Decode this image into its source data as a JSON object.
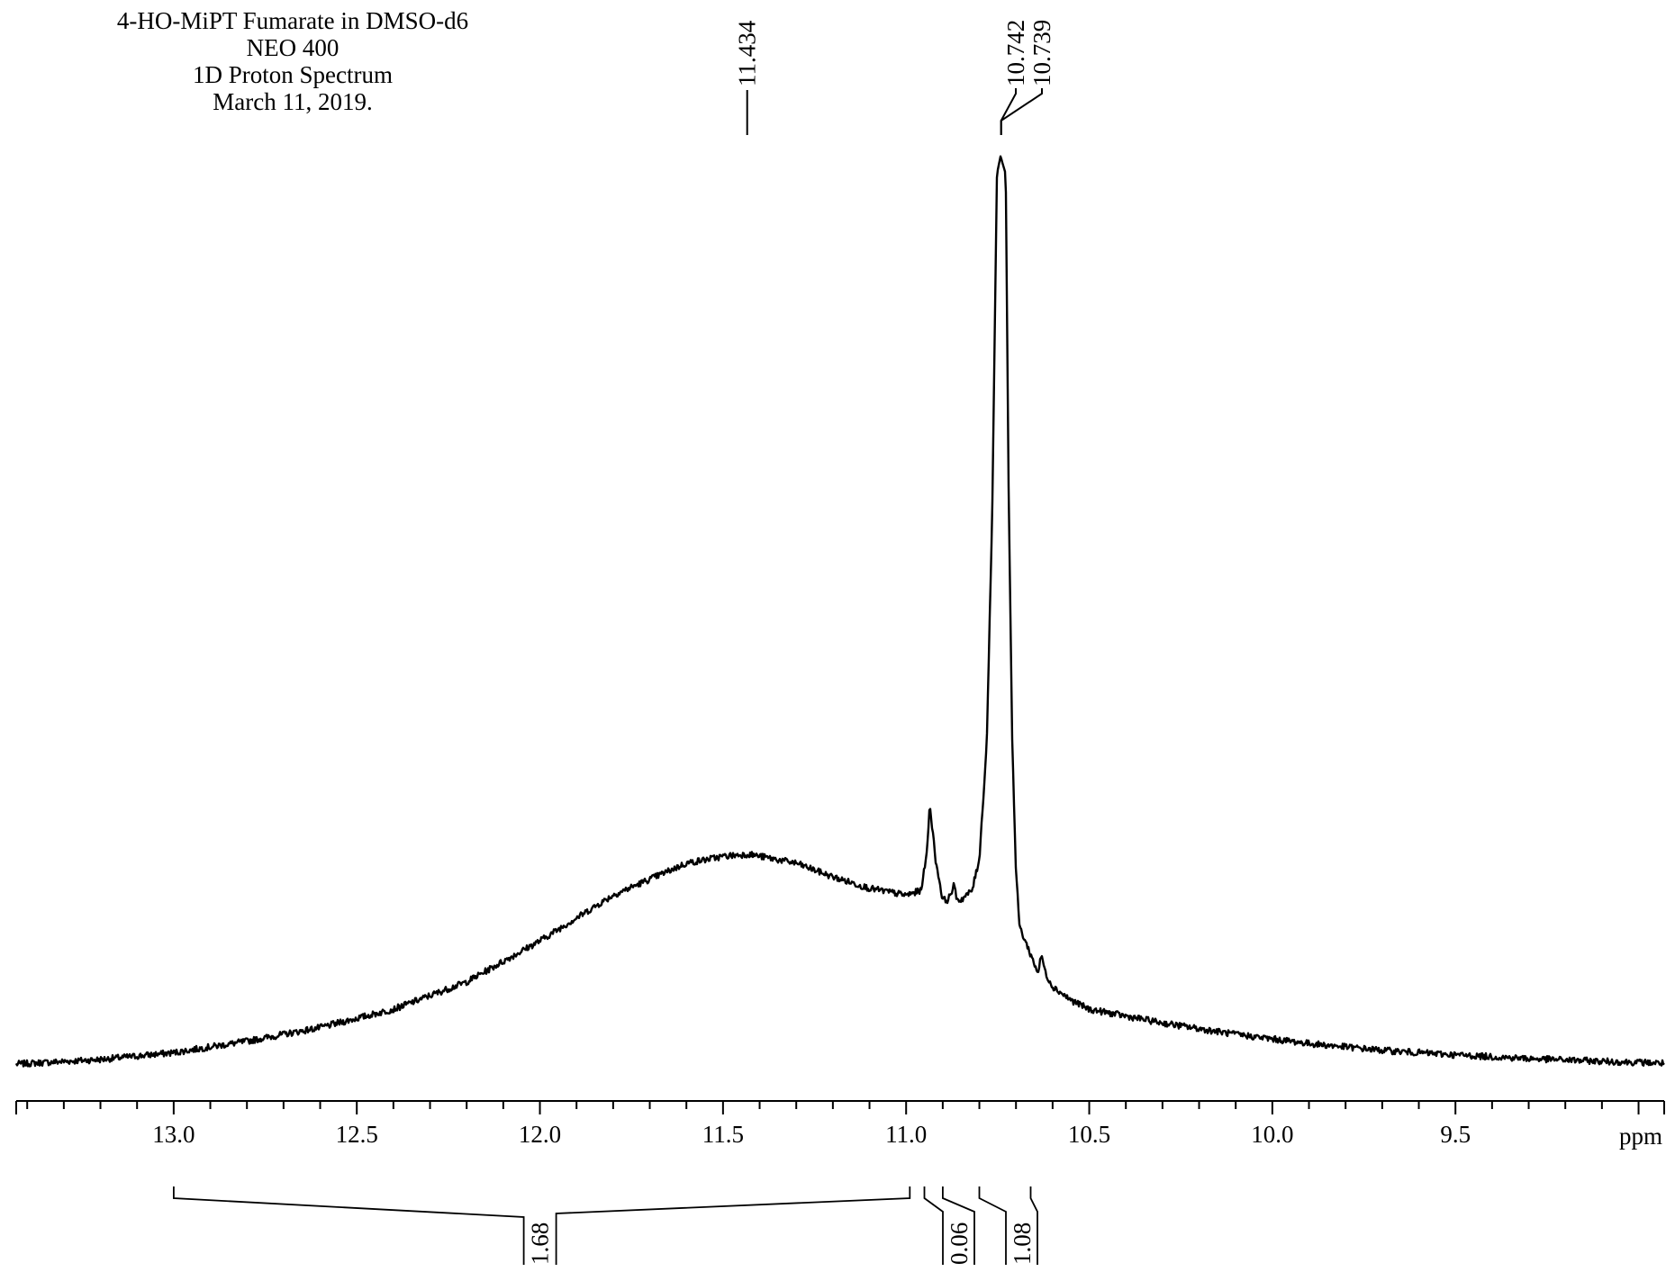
{
  "header": {
    "lines": [
      "4-HO-MiPT Fumarate in DMSO-d6",
      "NEO 400",
      "1D Proton Spectrum",
      "March 11, 2019."
    ]
  },
  "chart_data": {
    "type": "line",
    "title": "4-HO-MiPT Fumarate in DMSO-d6",
    "xlabel": "ppm",
    "ylabel": "",
    "x_axis_reversed": true,
    "xlim": [
      13.43,
      8.93
    ],
    "grid": false,
    "x_ticks": [
      "13.0",
      "12.5",
      "12.0",
      "11.5",
      "11.0",
      "10.5",
      "10.0",
      "9.5"
    ],
    "peak_labels": [
      {
        "ppm": 11.434,
        "label": "11.434"
      },
      {
        "ppm": 10.742,
        "label": "10.742"
      },
      {
        "ppm": 10.739,
        "label": "10.739"
      }
    ],
    "integrals": [
      {
        "from": 13.0,
        "to": 10.99,
        "value": "1.68"
      },
      {
        "from": 10.95,
        "to": 10.9,
        "value": "0.06"
      },
      {
        "from": 10.8,
        "to": 10.66,
        "value": "1.08"
      }
    ],
    "series": [
      {
        "x": [
          13.43,
          13.2,
          13.0,
          12.8,
          12.6,
          12.4,
          12.2,
          12.0,
          11.8,
          11.6,
          11.5,
          11.43,
          11.3,
          11.2,
          11.1,
          11.0,
          10.96,
          10.945,
          10.935,
          10.92,
          10.9,
          10.885,
          10.87,
          10.86,
          10.85,
          10.82,
          10.8,
          10.78,
          10.765,
          10.752,
          10.742,
          10.739,
          10.728,
          10.72,
          10.71,
          10.7,
          10.69,
          10.67,
          10.64,
          10.63,
          10.62,
          10.6,
          10.55,
          10.5,
          10.3,
          10.1,
          9.9,
          9.7,
          9.5,
          9.3,
          9.1,
          8.93
        ],
        "y": [
          0.0,
          0.01,
          0.025,
          0.05,
          0.08,
          0.12,
          0.18,
          0.27,
          0.37,
          0.44,
          0.455,
          0.46,
          0.44,
          0.41,
          0.385,
          0.37,
          0.38,
          0.45,
          0.57,
          0.45,
          0.36,
          0.36,
          0.39,
          0.36,
          0.36,
          0.38,
          0.45,
          0.7,
          1.2,
          1.95,
          1.99,
          1.98,
          1.95,
          1.25,
          0.7,
          0.42,
          0.3,
          0.26,
          0.2,
          0.24,
          0.2,
          0.17,
          0.14,
          0.12,
          0.09,
          0.065,
          0.045,
          0.03,
          0.02,
          0.012,
          0.006,
          0.002
        ]
      }
    ]
  }
}
